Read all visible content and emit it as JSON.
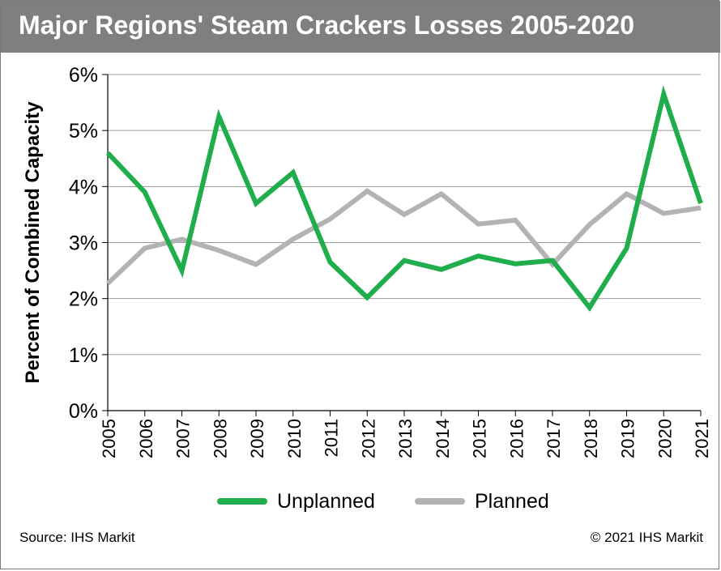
{
  "title": "Major Regions' Steam Crackers Losses 2005-2020",
  "footer": {
    "source": "Source: IHS Markit",
    "copyright": "© 2021 IHS Markit"
  },
  "colors": {
    "title_bar": "#7f7f7f",
    "unplanned": "#1fae4b",
    "planned": "#b3b3b5",
    "grid": "#9a9a9a"
  },
  "chart_data": {
    "type": "line",
    "title": "Major Regions' Steam Crackers Losses 2005-2020",
    "xlabel": "",
    "ylabel": "Percent of Combined Capacity",
    "categories": [
      "2005",
      "2006",
      "2007",
      "2008",
      "2009",
      "2010",
      "2011",
      "2012",
      "2013",
      "2014",
      "2015",
      "2016",
      "2017",
      "2018",
      "2019",
      "2020",
      "2021"
    ],
    "y_tick_labels": [
      "0%",
      "1%",
      "2%",
      "3%",
      "4%",
      "5%",
      "6%"
    ],
    "ylim": [
      0,
      6
    ],
    "grid": true,
    "legend_position": "bottom",
    "series": [
      {
        "name": "Unplanned",
        "color": "#1fae4b",
        "values": [
          4.6,
          3.9,
          2.5,
          5.25,
          3.7,
          4.25,
          2.65,
          2.02,
          2.68,
          2.52,
          2.76,
          2.62,
          2.68,
          1.84,
          2.9,
          5.65,
          3.7
        ]
      },
      {
        "name": "Planned",
        "color": "#b3b3b5",
        "values": [
          2.27,
          2.9,
          3.06,
          2.86,
          2.61,
          3.06,
          3.42,
          3.92,
          3.5,
          3.87,
          3.33,
          3.4,
          2.61,
          3.32,
          3.87,
          3.52,
          3.62
        ]
      }
    ]
  }
}
